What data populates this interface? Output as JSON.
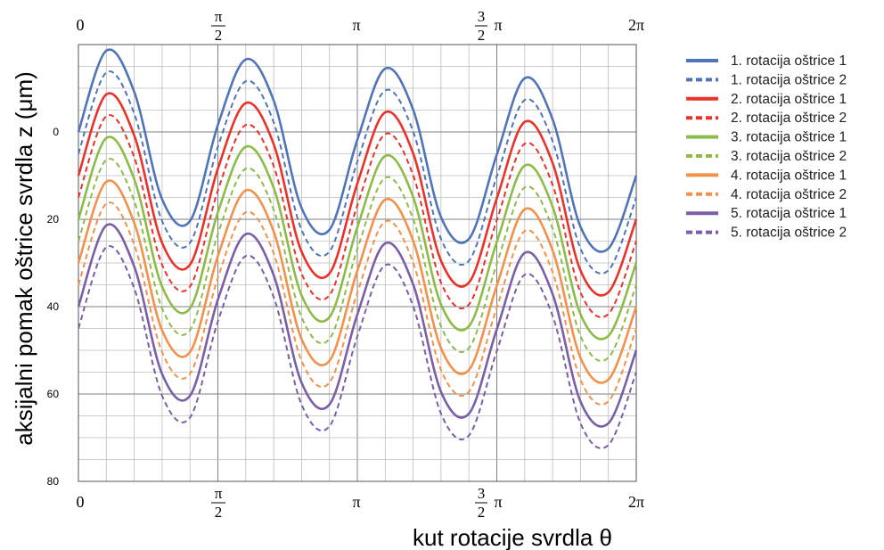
{
  "chart_data": {
    "type": "line",
    "xlabel": "kut rotacije svrdla θ",
    "ylabel": "aksijalni pomak oštrice svrdla z (μm)",
    "x_range": [
      0,
      6.2832
    ],
    "ylim": [
      80,
      -20
    ],
    "y_inverted": true,
    "y_ticks": [
      "0",
      "20",
      "40",
      "60",
      "80"
    ],
    "x_ticks": [
      "0",
      "π/2",
      "π",
      "3/2 π",
      "2π"
    ],
    "grid": true,
    "legend_position": "right",
    "x": [
      0.0,
      0.3142,
      0.6283,
      0.9425,
      1.2566,
      1.5708,
      1.885,
      2.1991,
      2.5133,
      2.8274,
      3.1416,
      3.4558,
      3.7699,
      4.0841,
      4.3982,
      4.7124,
      5.0265,
      5.3407,
      5.6549,
      5.969,
      6.2832
    ],
    "series": [
      {
        "name": "1. rotacija oštrice 1",
        "color": "#4f75b9",
        "style": "solid",
        "values": [
          0.0,
          -18.6,
          -9.2,
          15.4,
          20.4,
          -1.6,
          -16.6,
          -7.2,
          17.4,
          22.4,
          1.8,
          -14.5,
          -5.1,
          19.5,
          24.5,
          5.2,
          -12.3,
          -2.9,
          21.7,
          26.7,
          10.0
        ]
      },
      {
        "name": "1. rotacija oštrice 2",
        "color": "#4f75b9",
        "style": "dashed",
        "values": [
          5.0,
          -13.6,
          -4.2,
          20.4,
          25.4,
          3.4,
          -11.6,
          -2.2,
          22.4,
          27.4,
          6.8,
          -9.5,
          -0.1,
          24.5,
          29.5,
          10.2,
          -7.3,
          2.1,
          26.7,
          31.7,
          15.0
        ]
      },
      {
        "name": "2. rotacija oštrice 1",
        "color": "#e8322a",
        "style": "solid",
        "values": [
          10.0,
          -8.6,
          0.8,
          25.4,
          30.4,
          8.4,
          -6.6,
          2.8,
          27.4,
          32.4,
          11.8,
          -4.5,
          4.9,
          29.5,
          34.5,
          15.2,
          -2.3,
          7.1,
          31.7,
          36.7,
          20.0
        ]
      },
      {
        "name": "2. rotacija oštrice 2",
        "color": "#e8322a",
        "style": "dashed",
        "values": [
          15.0,
          -3.6,
          5.8,
          30.4,
          35.4,
          13.4,
          -1.6,
          7.8,
          32.4,
          37.4,
          16.8,
          0.5,
          9.9,
          34.5,
          39.5,
          20.2,
          2.7,
          12.1,
          36.7,
          41.7,
          25.0
        ]
      },
      {
        "name": "3. rotacija oštrice 1",
        "color": "#8dbb48",
        "style": "solid",
        "values": [
          20.0,
          1.4,
          10.8,
          35.4,
          40.4,
          18.4,
          3.4,
          12.8,
          37.4,
          42.4,
          21.8,
          5.5,
          14.9,
          39.5,
          44.5,
          25.2,
          7.7,
          17.1,
          41.7,
          46.7,
          30.0
        ]
      },
      {
        "name": "3. rotacija oštrice 2",
        "color": "#8dbb48",
        "style": "dashed",
        "values": [
          25.0,
          6.4,
          15.8,
          40.4,
          45.4,
          23.4,
          8.4,
          17.8,
          42.4,
          47.4,
          26.8,
          10.5,
          19.9,
          44.5,
          49.5,
          30.2,
          12.7,
          22.1,
          46.7,
          51.7,
          35.0
        ]
      },
      {
        "name": "4. rotacija oštrice 1",
        "color": "#f3914a",
        "style": "solid",
        "values": [
          30.0,
          11.4,
          20.8,
          45.4,
          50.4,
          28.4,
          13.4,
          22.8,
          47.4,
          52.4,
          31.8,
          15.5,
          24.9,
          49.5,
          54.5,
          35.2,
          17.7,
          27.1,
          51.7,
          56.7,
          40.0
        ]
      },
      {
        "name": "4. rotacija oštrice 2",
        "color": "#f3914a",
        "style": "dashed",
        "values": [
          35.0,
          16.4,
          25.8,
          50.4,
          55.4,
          33.4,
          18.4,
          27.8,
          52.4,
          57.4,
          36.8,
          20.5,
          29.9,
          54.5,
          59.5,
          40.2,
          22.7,
          32.1,
          56.7,
          61.7,
          45.0
        ]
      },
      {
        "name": "5. rotacija oštrice 1",
        "color": "#7b5ea8",
        "style": "solid",
        "values": [
          40.0,
          21.4,
          30.8,
          55.4,
          60.4,
          38.4,
          23.4,
          32.8,
          57.4,
          62.4,
          41.8,
          25.5,
          34.9,
          59.5,
          64.5,
          45.2,
          27.7,
          37.1,
          61.7,
          66.7,
          50.0
        ]
      },
      {
        "name": "5. rotacija oštrice 2",
        "color": "#7b5ea8",
        "style": "dashed",
        "values": [
          45.0,
          26.4,
          35.8,
          60.4,
          65.4,
          43.4,
          28.4,
          37.8,
          62.4,
          67.4,
          46.8,
          30.5,
          39.9,
          64.5,
          69.5,
          50.2,
          32.7,
          42.1,
          66.7,
          71.7,
          55.0
        ]
      }
    ]
  }
}
